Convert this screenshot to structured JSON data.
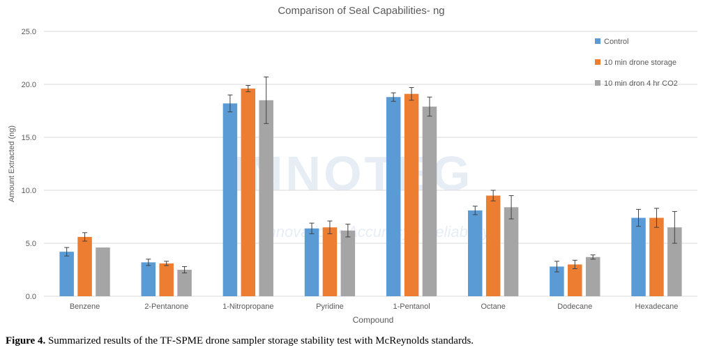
{
  "chart_data": {
    "type": "bar",
    "title": "Comparison of Seal Capabilities- ng",
    "xlabel": "Compound",
    "ylabel": "Amount Extracted (ng)",
    "ylim": [
      0,
      25
    ],
    "yticks": [
      "0.0",
      "5.0",
      "10.0",
      "15.0",
      "20.0",
      "25.0"
    ],
    "grid": true,
    "legend_position": "top-right",
    "categories": [
      "Benzene",
      "2-Pentanone",
      "1-Nitropropane",
      "Pyridine",
      "1-Pentanol",
      "Octane",
      "Dodecane",
      "Hexadecane"
    ],
    "series": [
      {
        "name": "Control",
        "color": "#5b9bd5",
        "values": [
          4.2,
          3.2,
          18.2,
          6.4,
          18.8,
          8.1,
          2.8,
          7.4
        ],
        "errors": [
          0.4,
          0.3,
          0.8,
          0.5,
          0.4,
          0.4,
          0.5,
          0.8
        ]
      },
      {
        "name": "10 min drone storage",
        "color": "#ed7d31",
        "values": [
          5.6,
          3.1,
          19.6,
          6.5,
          19.1,
          9.5,
          3.0,
          7.4
        ],
        "errors": [
          0.4,
          0.2,
          0.3,
          0.6,
          0.6,
          0.5,
          0.4,
          0.9
        ]
      },
      {
        "name": "10 min dron 4 hr CO2",
        "color": "#a5a5a5",
        "values": [
          4.6,
          2.5,
          18.5,
          6.2,
          17.9,
          8.4,
          3.7,
          6.5
        ],
        "errors": [
          0.0,
          0.3,
          2.2,
          0.6,
          0.9,
          1.1,
          0.2,
          1.5
        ]
      }
    ]
  },
  "watermark": {
    "name": "INNOTEG",
    "tagline": "Innovation • Accuracy • Reliability"
  },
  "caption": {
    "label": "Figure 4.",
    "text": " Summarized results of the TF-SPME drone sampler storage stability test with McReynolds standards."
  }
}
